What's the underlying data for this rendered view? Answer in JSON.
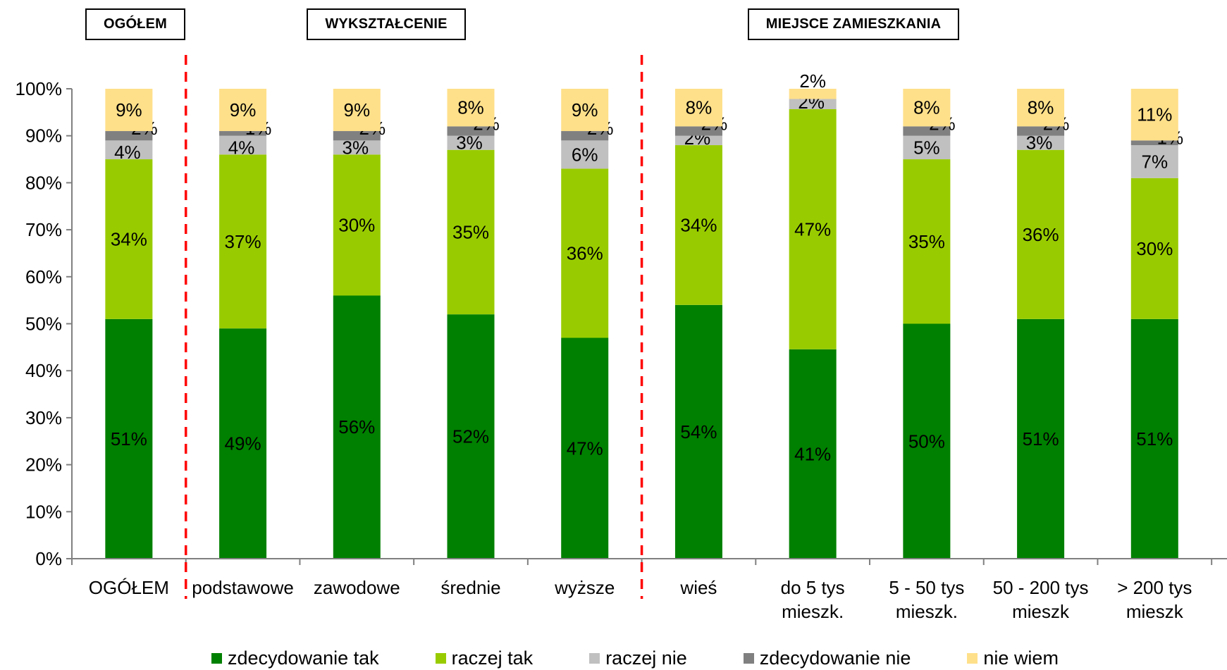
{
  "groups": [
    {
      "label": "OGÓŁEM"
    },
    {
      "label": "WYKSZTAŁCENIE"
    },
    {
      "label": "MIEJSCE ZAMIESZKANIA"
    }
  ],
  "chart_data": {
    "type": "bar",
    "stacked": true,
    "percent": true,
    "ylim": [
      0,
      100
    ],
    "yticks": [
      "0%",
      "10%",
      "20%",
      "30%",
      "40%",
      "50%",
      "60%",
      "70%",
      "80%",
      "90%",
      "100%"
    ],
    "categories": [
      [
        "OGÓŁEM"
      ],
      [
        "podstawowe"
      ],
      [
        "zawodowe"
      ],
      [
        "średnie"
      ],
      [
        "wyższe"
      ],
      [
        "wieś"
      ],
      [
        "do 5 tys",
        "mieszk."
      ],
      [
        "5 - 50 tys",
        "mieszk."
      ],
      [
        "50 - 200 tys",
        "mieszk"
      ],
      [
        "> 200 tys",
        "mieszk"
      ]
    ],
    "series": [
      {
        "name": "zdecydowanie tak",
        "color": "#008000",
        "values": [
          51,
          49,
          56,
          52,
          47,
          54,
          41,
          50,
          51,
          51
        ],
        "labels": [
          "51%",
          "49%",
          "56%",
          "52%",
          "47%",
          "54%",
          "41%",
          "50%",
          "51%",
          "51%"
        ]
      },
      {
        "name": "raczej tak",
        "color": "#99CC00",
        "values": [
          34,
          37,
          30,
          35,
          36,
          34,
          47,
          35,
          36,
          30
        ],
        "labels": [
          "34%",
          "37%",
          "30%",
          "35%",
          "36%",
          "34%",
          "47%",
          "35%",
          "36%",
          "30%"
        ]
      },
      {
        "name": "raczej nie",
        "color": "#C0C0C0",
        "values": [
          4,
          4,
          3,
          3,
          6,
          2,
          2,
          5,
          3,
          7
        ],
        "labels": [
          "4%",
          "4%",
          "3%",
          "3%",
          "6%",
          "2%",
          "2%",
          "5%",
          "3%",
          "7%"
        ]
      },
      {
        "name": "zdecydowanie nie",
        "color": "#808080",
        "values": [
          2,
          1,
          2,
          2,
          2,
          2,
          0,
          2,
          2,
          1
        ],
        "labels": [
          "2%",
          "1%",
          "2%",
          "2%",
          "2%",
          "2%",
          "",
          "2%",
          "2%",
          "1%"
        ]
      },
      {
        "name": "nie wiem",
        "color": "#FFE08A",
        "values": [
          9,
          9,
          9,
          8,
          9,
          8,
          2,
          8,
          8,
          11
        ],
        "labels": [
          "9%",
          "9%",
          "9%",
          "8%",
          "9%",
          "8%",
          "2%",
          "8%",
          "8%",
          "11%"
        ]
      }
    ],
    "separators_after": [
      0,
      4
    ],
    "separator_color": "#FF0000",
    "grid": false,
    "legend_position": "bottom"
  }
}
